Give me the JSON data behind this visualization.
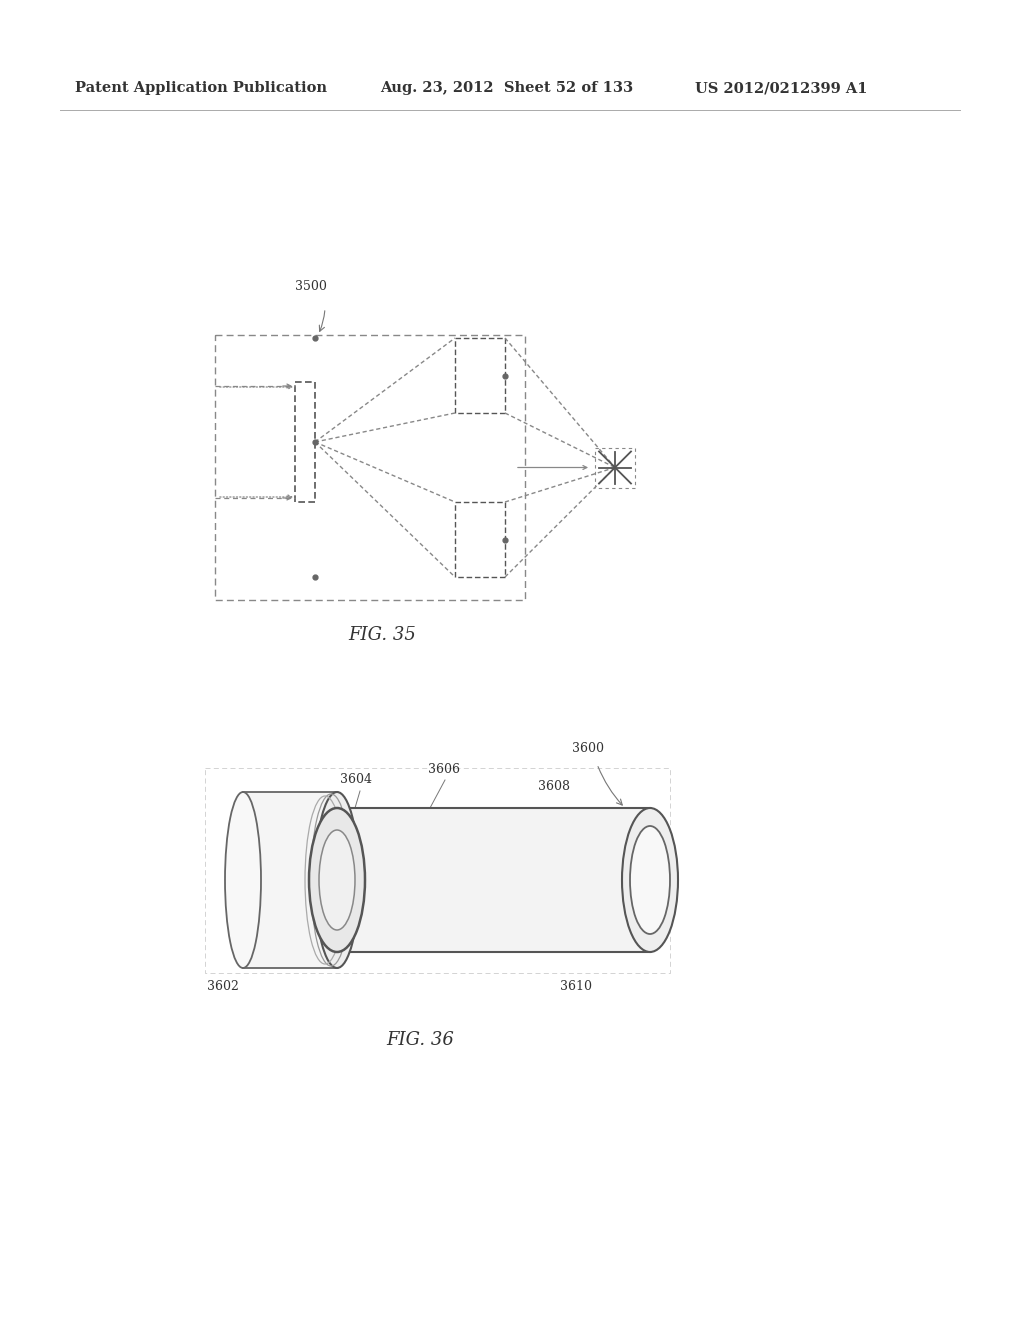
{
  "bg_color": "#ffffff",
  "text_color": "#333333",
  "line_color": "#555555",
  "header_left": "Patent Application Publication",
  "header_mid": "Aug. 23, 2012  Sheet 52 of 133",
  "header_right": "US 2012/0212399 A1",
  "fig35_label": "FIG. 35",
  "fig36_label": "FIG. 36",
  "label_3500": "3500",
  "label_3602": "3602",
  "label_3604": "3604",
  "label_3606": "3606",
  "label_3608": "3608",
  "label_3610": "3610",
  "label_3600": "3600"
}
